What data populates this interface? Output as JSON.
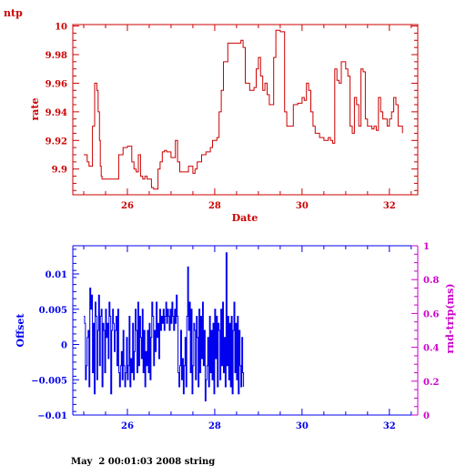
{
  "header": {
    "app_label": "ntp"
  },
  "footer": {
    "text": "May  2 00:01:03 2008 string"
  },
  "colors": {
    "top": "#cc0000",
    "bottom": "#0000ee",
    "right_axis": "#cc00cc"
  },
  "chart_data": [
    {
      "type": "line",
      "xlabel": "Date",
      "ylabel": "rate",
      "xlim": [
        24.75,
        32.65
      ],
      "ylim": [
        9.882,
        10.001
      ],
      "xticks": [
        26,
        28,
        30,
        32
      ],
      "xtick_labels": [
        "26",
        "28",
        "30",
        "32"
      ],
      "yticks": [
        9.9,
        9.92,
        9.94,
        9.96,
        9.98,
        10
      ],
      "ytick_labels": [
        "9.9",
        "9.92",
        "9.94",
        "9.96",
        "9.98",
        "10"
      ],
      "series": [
        {
          "x": [
            25.0,
            25.08,
            25.12,
            25.2,
            25.25,
            25.3,
            25.33,
            25.36,
            25.38,
            25.4,
            25.42,
            25.45,
            25.5,
            25.6,
            25.8,
            25.9,
            26.0,
            26.1,
            26.15,
            26.2,
            26.25,
            26.3,
            26.35,
            26.4,
            26.45,
            26.55,
            26.6,
            26.7,
            26.75,
            26.8,
            26.85,
            26.9,
            27.0,
            27.1,
            27.15,
            27.2,
            27.3,
            27.4,
            27.5,
            27.55,
            27.6,
            27.7,
            27.8,
            27.9,
            27.95,
            28.05,
            28.1,
            28.15,
            28.2,
            28.3,
            28.5,
            28.6,
            28.65,
            28.7,
            28.8,
            28.9,
            28.95,
            29.0,
            29.05,
            29.1,
            29.15,
            29.2,
            29.25,
            29.35,
            29.4,
            29.45,
            29.5,
            29.6,
            29.65,
            29.7,
            29.8,
            29.9,
            30.0,
            30.05,
            30.1,
            30.15,
            30.2,
            30.25,
            30.3,
            30.4,
            30.5,
            30.6,
            30.65,
            30.7,
            30.75,
            30.8,
            30.85,
            30.9,
            31.0,
            31.05,
            31.1,
            31.15,
            31.2,
            31.25,
            31.3,
            31.35,
            31.4,
            31.45,
            31.5,
            31.6,
            31.65,
            31.7,
            31.75,
            31.8,
            31.85,
            31.9,
            31.95,
            32.0,
            32.05,
            32.1,
            32.15,
            32.2,
            32.3
          ],
          "y": [
            9.91,
            9.905,
            9.902,
            9.93,
            9.96,
            9.955,
            9.94,
            9.92,
            9.902,
            9.895,
            9.893,
            9.893,
            9.893,
            9.893,
            9.91,
            9.915,
            9.916,
            9.905,
            9.9,
            9.898,
            9.91,
            9.895,
            9.893,
            9.895,
            9.893,
            9.887,
            9.886,
            9.9,
            9.905,
            9.912,
            9.913,
            9.912,
            9.908,
            9.92,
            9.905,
            9.898,
            9.898,
            9.902,
            9.897,
            9.9,
            9.905,
            9.91,
            9.912,
            9.915,
            9.92,
            9.922,
            9.94,
            9.955,
            9.975,
            9.988,
            9.988,
            9.99,
            9.985,
            9.96,
            9.955,
            9.957,
            9.97,
            9.978,
            9.965,
            9.955,
            9.96,
            9.952,
            9.945,
            9.978,
            9.997,
            9.997,
            9.996,
            9.94,
            9.93,
            9.93,
            9.945,
            9.946,
            9.95,
            9.948,
            9.96,
            9.955,
            9.94,
            9.93,
            9.925,
            9.922,
            9.92,
            9.922,
            9.92,
            9.918,
            9.97,
            9.962,
            9.96,
            9.975,
            9.97,
            9.965,
            9.93,
            9.925,
            9.95,
            9.945,
            9.93,
            9.97,
            9.968,
            9.935,
            9.93,
            9.928,
            9.93,
            9.927,
            9.95,
            9.94,
            9.935,
            9.935,
            9.93,
            9.935,
            9.94,
            9.95,
            9.945,
            9.93,
            9.925
          ]
        }
      ]
    },
    {
      "type": "line",
      "xlabel": "",
      "ylabel": "Offset",
      "ylabel_right": "rnd-trip(ms)",
      "xlim": [
        24.75,
        32.65
      ],
      "ylim": [
        -0.01,
        0.014
      ],
      "ylim_right": [
        0,
        1
      ],
      "xticks": [
        26,
        28,
        30,
        32
      ],
      "xtick_labels": [
        "26",
        "28",
        "30",
        "32"
      ],
      "yticks": [
        -0.01,
        -0.005,
        0,
        0.005,
        0.01
      ],
      "ytick_labels": [
        "−0.01",
        "−0.005",
        "0",
        "0.005",
        "0.01"
      ],
      "yticks_right": [
        0,
        0.2,
        0.4,
        0.6,
        0.8,
        1
      ],
      "ytick_labels_right": [
        "0",
        "0.2",
        "0.4",
        "0.6",
        "0.8",
        "1"
      ],
      "series": [
        {
          "x_start": 25.0,
          "x_step": 0.02,
          "y": [
            0.004,
            0.003,
            -0.005,
            -0.003,
            0.001,
            0.002,
            -0.006,
            0.008,
            0.005,
            0.007,
            -0.004,
            0.003,
            -0.007,
            0.006,
            0.004,
            -0.005,
            0.002,
            0.007,
            -0.003,
            0.004,
            0.005,
            -0.006,
            0.003,
            0.002,
            -0.004,
            0.005,
            0.001,
            0.003,
            -0.002,
            0.006,
            0.004,
            -0.007,
            0.002,
            0.005,
            0.003,
            -0.001,
            0.002,
            0.004,
            -0.003,
            0.005,
            -0.004,
            -0.006,
            -0.003,
            -0.001,
            -0.005,
            0.002,
            -0.003,
            -0.006,
            -0.004,
            0.001,
            -0.005,
            -0.003,
            0.004,
            -0.006,
            -0.002,
            -0.004,
            0.003,
            -0.005,
            -0.001,
            0.005,
            0.002,
            -0.004,
            0.006,
            -0.003,
            0.004,
            0.001,
            -0.002,
            0.005,
            -0.004,
            0.002,
            -0.006,
            -0.001,
            -0.003,
            0.002,
            -0.004,
            0.003,
            -0.005,
            0.001,
            0.006,
            0.004,
            -0.003,
            0.002,
            -0.001,
            0.006,
            0.001,
            0.003,
            -0.002,
            0.005,
            0.002,
            0.004,
            0.003,
            0.005,
            0.002,
            0.004,
            0.006,
            0.003,
            0.005,
            0.004,
            0.002,
            0.005,
            0.003,
            0.006,
            0.004,
            0.002,
            0.005,
            0.003,
            0.007,
            0.004,
            -0.004,
            -0.006,
            -0.003,
            0.002,
            -0.005,
            -0.002,
            -0.007,
            -0.003,
            0.001,
            -0.006,
            0.004,
            0.011,
            0.002,
            0.006,
            -0.004,
            0.005,
            -0.007,
            -0.003,
            0.003,
            0.002,
            -0.005,
            0.004,
            0.001,
            -0.006,
            0.005,
            -0.004,
            0.004,
            -0.002,
            0.006,
            -0.003,
            0.002,
            -0.008,
            -0.005,
            -0.003,
            0.001,
            -0.006,
            0.004,
            -0.004,
            0.002,
            -0.005,
            0.003,
            -0.007,
            0.005,
            -0.002,
            0.004,
            -0.006,
            0.003,
            0.002,
            -0.005,
            0.005,
            -0.003,
            0.006,
            -0.004,
            0.001,
            -0.006,
            0.013,
            -0.003,
            0.004,
            -0.005,
            0.003,
            -0.006,
            0.004,
            -0.007,
            0.002,
            0.006,
            -0.004,
            0.003,
            -0.005,
            0.004,
            -0.007,
            0.002,
            -0.003,
            -0.006,
            0.001,
            -0.004,
            -0.006
          ]
        }
      ]
    }
  ]
}
